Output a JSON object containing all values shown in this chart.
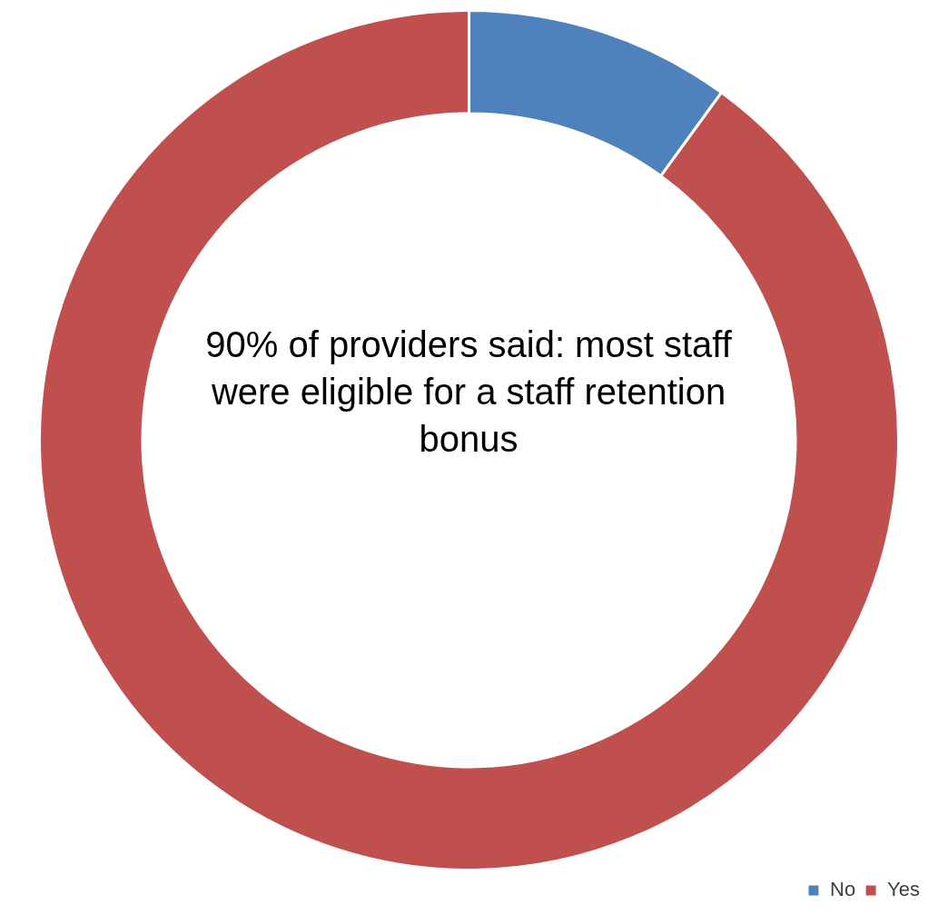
{
  "chart_data": {
    "type": "donut",
    "categories": [
      "No",
      "Yes"
    ],
    "values": [
      10,
      90
    ],
    "colors": [
      "#4f81bd",
      "#c0504d"
    ],
    "annotations": [
      "90% of providers said: most staff were eligible for a staff retention bonus"
    ],
    "legend": "bottom right"
  }
}
